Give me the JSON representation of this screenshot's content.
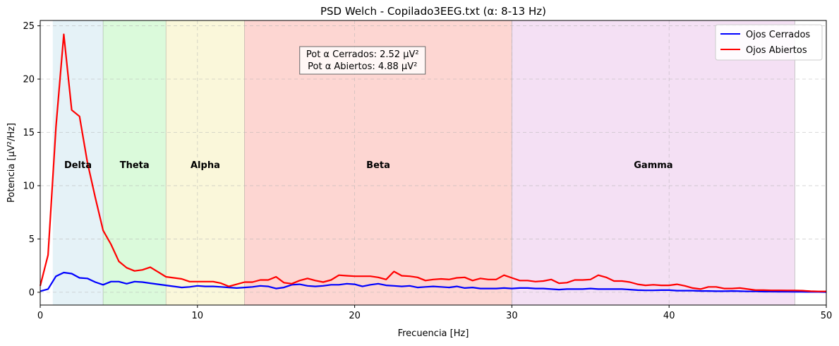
{
  "chart_data": {
    "type": "line",
    "title": "PSD Welch - Copilado3EEG.txt (α: 8-13 Hz)",
    "xlabel": "Frecuencia [Hz]",
    "ylabel": "Potencia [µV²/Hz]",
    "xlim": [
      0,
      50
    ],
    "ylim": [
      -1.2,
      25.5
    ],
    "xticks": [
      0,
      10,
      20,
      30,
      40,
      50
    ],
    "yticks": [
      0,
      5,
      10,
      15,
      20,
      25
    ],
    "grid": true,
    "legend_position": "top-right",
    "bands": [
      {
        "name": "Delta",
        "range": [
          0.8,
          4
        ],
        "color": "#add8e6"
      },
      {
        "name": "Theta",
        "range": [
          4,
          8
        ],
        "color": "#90ee90"
      },
      {
        "name": "Alpha",
        "range": [
          8,
          13
        ],
        "color": "#f0e68c"
      },
      {
        "name": "Beta",
        "range": [
          13,
          30
        ],
        "color": "#fa8072"
      },
      {
        "name": "Gamma",
        "range": [
          30,
          48
        ],
        "color": "#dda0dd"
      }
    ],
    "annotation": [
      "Pot α Cerrados: 2.52 µV²",
      "Pot α Abiertos: 4.88 µV²"
    ],
    "series": [
      {
        "name": "Ojos Cerrados",
        "color": "#0000ff",
        "x": [
          0,
          0.5,
          1,
          1.5,
          2,
          2.5,
          3,
          3.5,
          4,
          4.5,
          5,
          5.5,
          6,
          6.5,
          7,
          7.5,
          8,
          8.5,
          9,
          9.5,
          10,
          10.5,
          11,
          11.5,
          12,
          12.5,
          13,
          13.5,
          14,
          14.5,
          15,
          15.5,
          16,
          16.5,
          17,
          17.5,
          18,
          18.5,
          19,
          19.5,
          20,
          20.5,
          21,
          21.5,
          22,
          22.5,
          23,
          23.5,
          24,
          24.5,
          25,
          25.5,
          26,
          26.5,
          27,
          27.5,
          28,
          28.5,
          29,
          29.5,
          30,
          30.5,
          31,
          31.5,
          32,
          32.5,
          33,
          33.5,
          34,
          34.5,
          35,
          35.5,
          36,
          36.5,
          37,
          37.5,
          38,
          38.5,
          39,
          39.5,
          40,
          40.5,
          41,
          41.5,
          42,
          42.5,
          43,
          43.5,
          44,
          44.5,
          45,
          45.5,
          46,
          46.5,
          47,
          47.5,
          48,
          48.5,
          49,
          49.5,
          50
        ],
        "y": [
          0.1,
          0.3,
          1.5,
          1.85,
          1.75,
          1.35,
          1.3,
          0.95,
          0.7,
          1.0,
          1.0,
          0.8,
          1.0,
          0.95,
          0.85,
          0.75,
          0.65,
          0.55,
          0.45,
          0.5,
          0.6,
          0.55,
          0.55,
          0.5,
          0.45,
          0.4,
          0.45,
          0.5,
          0.6,
          0.55,
          0.35,
          0.45,
          0.7,
          0.75,
          0.6,
          0.55,
          0.6,
          0.7,
          0.7,
          0.8,
          0.75,
          0.55,
          0.7,
          0.8,
          0.65,
          0.6,
          0.55,
          0.6,
          0.45,
          0.5,
          0.55,
          0.5,
          0.45,
          0.55,
          0.4,
          0.45,
          0.35,
          0.35,
          0.35,
          0.4,
          0.35,
          0.4,
          0.4,
          0.35,
          0.35,
          0.3,
          0.25,
          0.3,
          0.3,
          0.3,
          0.35,
          0.3,
          0.3,
          0.3,
          0.3,
          0.25,
          0.2,
          0.18,
          0.18,
          0.2,
          0.2,
          0.15,
          0.15,
          0.15,
          0.12,
          0.12,
          0.1,
          0.1,
          0.12,
          0.1,
          0.08,
          0.08,
          0.06,
          0.06,
          0.05,
          0.05,
          0.04,
          0.04,
          0.03,
          0.03,
          0.02
        ]
      },
      {
        "name": "Ojos Abiertos",
        "color": "#ff0000",
        "x": [
          0,
          0.5,
          1,
          1.5,
          2,
          2.5,
          3,
          3.5,
          4,
          4.5,
          5,
          5.5,
          6,
          6.5,
          7,
          7.5,
          8,
          8.5,
          9,
          9.5,
          10,
          10.5,
          11,
          11.5,
          12,
          12.5,
          13,
          13.5,
          14,
          14.5,
          15,
          15.5,
          16,
          16.5,
          17,
          17.5,
          18,
          18.5,
          19,
          19.5,
          20,
          20.5,
          21,
          21.5,
          22,
          22.5,
          23,
          23.5,
          24,
          24.5,
          25,
          25.5,
          26,
          26.5,
          27,
          27.5,
          28,
          28.5,
          29,
          29.5,
          30,
          30.5,
          31,
          31.5,
          32,
          32.5,
          33,
          33.5,
          34,
          34.5,
          35,
          35.5,
          36,
          36.5,
          37,
          37.5,
          38,
          38.5,
          39,
          39.5,
          40,
          40.5,
          41,
          41.5,
          42,
          42.5,
          43,
          43.5,
          44,
          44.5,
          45,
          45.5,
          46,
          46.5,
          47,
          47.5,
          48,
          48.5,
          49,
          49.5,
          50
        ],
        "y": [
          0.6,
          3.5,
          15.5,
          24.2,
          17.1,
          16.5,
          12.2,
          8.9,
          5.8,
          4.5,
          2.9,
          2.3,
          2.0,
          2.1,
          2.35,
          1.9,
          1.45,
          1.35,
          1.25,
          1.0,
          1.0,
          1.0,
          1.0,
          0.85,
          0.55,
          0.75,
          0.95,
          0.95,
          1.15,
          1.15,
          1.45,
          0.9,
          0.8,
          1.1,
          1.3,
          1.1,
          0.95,
          1.15,
          1.6,
          1.55,
          1.5,
          1.5,
          1.5,
          1.4,
          1.2,
          1.95,
          1.55,
          1.5,
          1.4,
          1.1,
          1.2,
          1.25,
          1.2,
          1.35,
          1.4,
          1.1,
          1.3,
          1.2,
          1.2,
          1.6,
          1.35,
          1.1,
          1.1,
          1.0,
          1.05,
          1.2,
          0.85,
          0.9,
          1.15,
          1.15,
          1.2,
          1.6,
          1.4,
          1.05,
          1.05,
          0.95,
          0.75,
          0.65,
          0.7,
          0.65,
          0.65,
          0.75,
          0.6,
          0.4,
          0.3,
          0.5,
          0.5,
          0.35,
          0.35,
          0.4,
          0.3,
          0.2,
          0.2,
          0.18,
          0.18,
          0.17,
          0.17,
          0.15,
          0.1,
          0.08,
          0.08
        ]
      }
    ]
  }
}
